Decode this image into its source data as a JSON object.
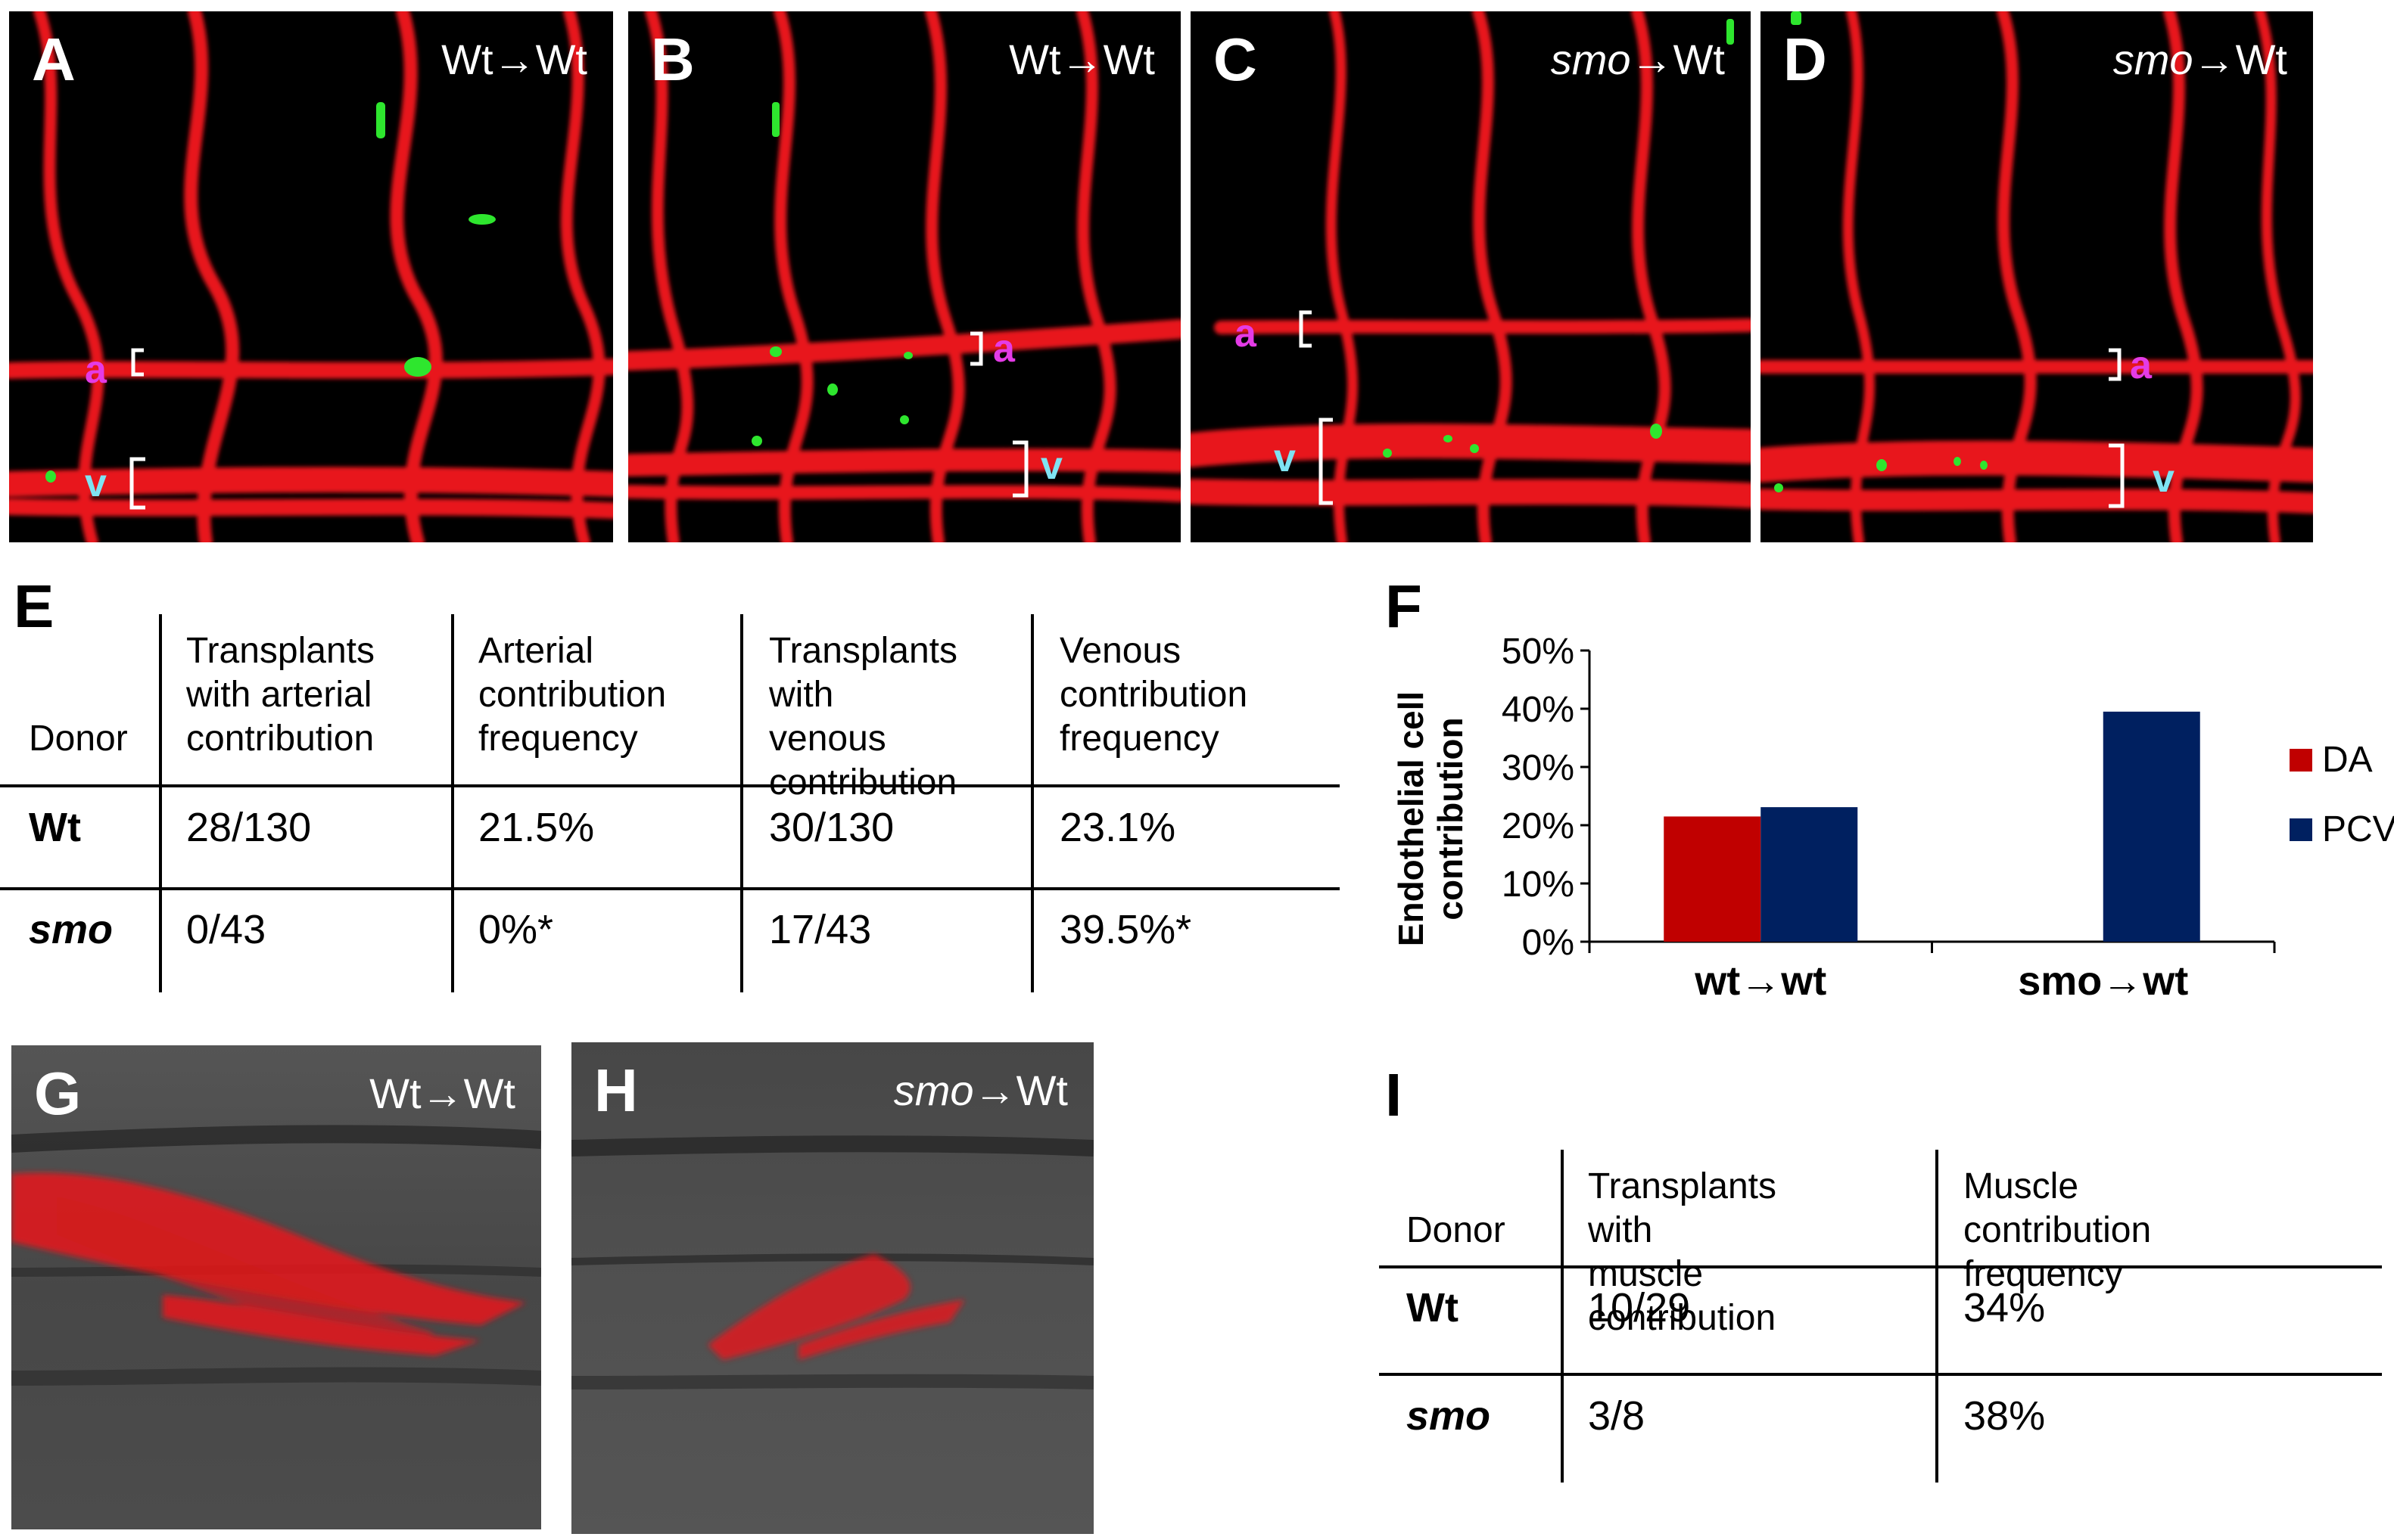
{
  "colors": {
    "vessel_red": "#e8141a",
    "gfp_green": "#2ee62e",
    "arterial_label": "#e43be6",
    "venous_label": "#7fe3f2",
    "da_bar": "#c00000",
    "pcv_bar": "#002060"
  },
  "panels": {
    "A": {
      "label": "A",
      "donor": "Wt",
      "arrow": "→",
      "host": "Wt",
      "a": "a",
      "v": "v"
    },
    "B": {
      "label": "B",
      "donor": "Wt",
      "arrow": "→",
      "host": "Wt",
      "a": "a",
      "v": "v"
    },
    "C": {
      "label": "C",
      "donor": "smo",
      "arrow": "→",
      "host": "Wt",
      "a": "a",
      "v": "v"
    },
    "D": {
      "label": "D",
      "donor": "smo",
      "arrow": "→",
      "host": "Wt",
      "a": "a",
      "v": "v"
    },
    "G": {
      "label": "G",
      "donor": "Wt",
      "arrow": "→",
      "host": "Wt"
    },
    "H": {
      "label": "H",
      "donor": "smo",
      "arrow": "→",
      "host": "Wt"
    }
  },
  "table_e": {
    "label": "E",
    "headers": [
      "Donor",
      "Transplants\nwith arterial\ncontribution",
      "Arterial\ncontribution\nfrequency",
      "Transplants\nwith venous\ncontribution",
      "Venous\ncontribution\nfrequency"
    ],
    "rows": [
      [
        "Wt",
        "28/130",
        "21.5%",
        "30/130",
        "23.1%"
      ],
      [
        "smo",
        "0/43",
        "0%*",
        "17/43",
        "39.5%*"
      ]
    ]
  },
  "table_i": {
    "label": "I",
    "headers": [
      "Donor",
      "Transplants with\nmuscle contribution",
      "Muscle contribution\nfrequency"
    ],
    "rows": [
      [
        "Wt",
        "10/29",
        "34%"
      ],
      [
        "smo",
        "3/8",
        "38%"
      ]
    ]
  },
  "chart_data": {
    "label": "F",
    "type": "bar",
    "categories": [
      "wt→wt",
      "smo→wt"
    ],
    "series": [
      {
        "name": "DA",
        "values": [
          21.5,
          0
        ],
        "color": "#c00000"
      },
      {
        "name": "PCV",
        "values": [
          23.1,
          39.5
        ],
        "color": "#002060"
      }
    ],
    "ylabel": "Endothelial cell\ncontribution",
    "ylim": [
      0,
      50
    ],
    "yticks": [
      "0%",
      "10%",
      "20%",
      "30%",
      "40%",
      "50%"
    ],
    "grid": false,
    "legend": "right"
  }
}
